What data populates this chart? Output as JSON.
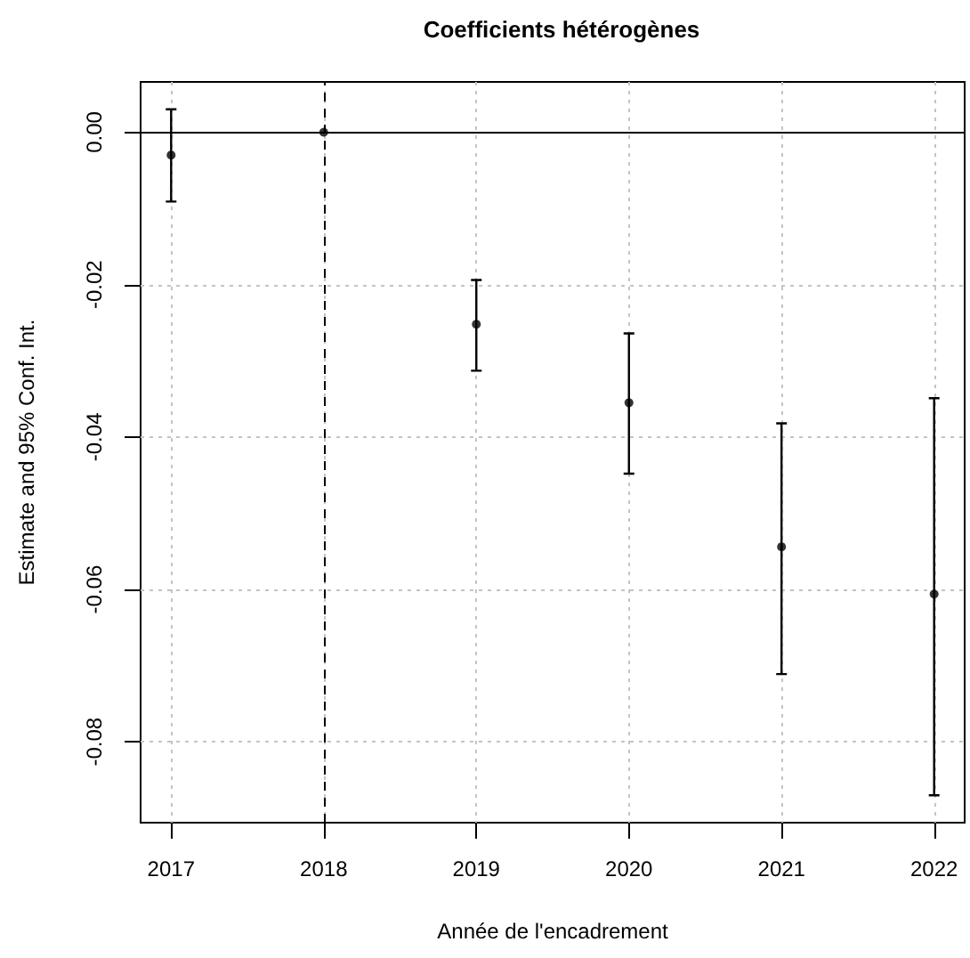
{
  "chart_data": {
    "type": "scatter",
    "title": "Coefficients hétérogènes",
    "xlabel": "Année de l'encadrement",
    "ylabel": "Estimate and 95% Conf. Int.",
    "x": [
      2017,
      2018,
      2019,
      2020,
      2021,
      2022
    ],
    "values": [
      -0.003,
      0,
      -0.0252,
      -0.0355,
      -0.0544,
      -0.0606
    ],
    "errors": [
      [
        -0.0091,
        0.003
      ],
      null,
      [
        -0.0313,
        -0.0194
      ],
      [
        -0.0448,
        -0.0264
      ],
      [
        -0.0711,
        -0.0382
      ],
      [
        -0.087,
        -0.0349
      ]
    ],
    "color": "#000000",
    "marker": "circle",
    "xlim": [
      2016.8,
      2022.2
    ],
    "xticks": [
      2017,
      2018,
      2019,
      2020,
      2021,
      2022
    ],
    "ylim": [
      -0.0906,
      0.0066
    ],
    "yticks": [
      {
        "value": 0,
        "label": "0.00"
      },
      -0.02,
      -0.04,
      -0.06,
      -0.08
    ],
    "grid": true,
    "ref_lines": [
      {
        "axis": "y",
        "value": 0,
        "color": "#000000",
        "line_style": "solid"
      },
      {
        "axis": "x",
        "value": 2018,
        "color": "#000000",
        "line_style": "dashed"
      }
    ]
  }
}
